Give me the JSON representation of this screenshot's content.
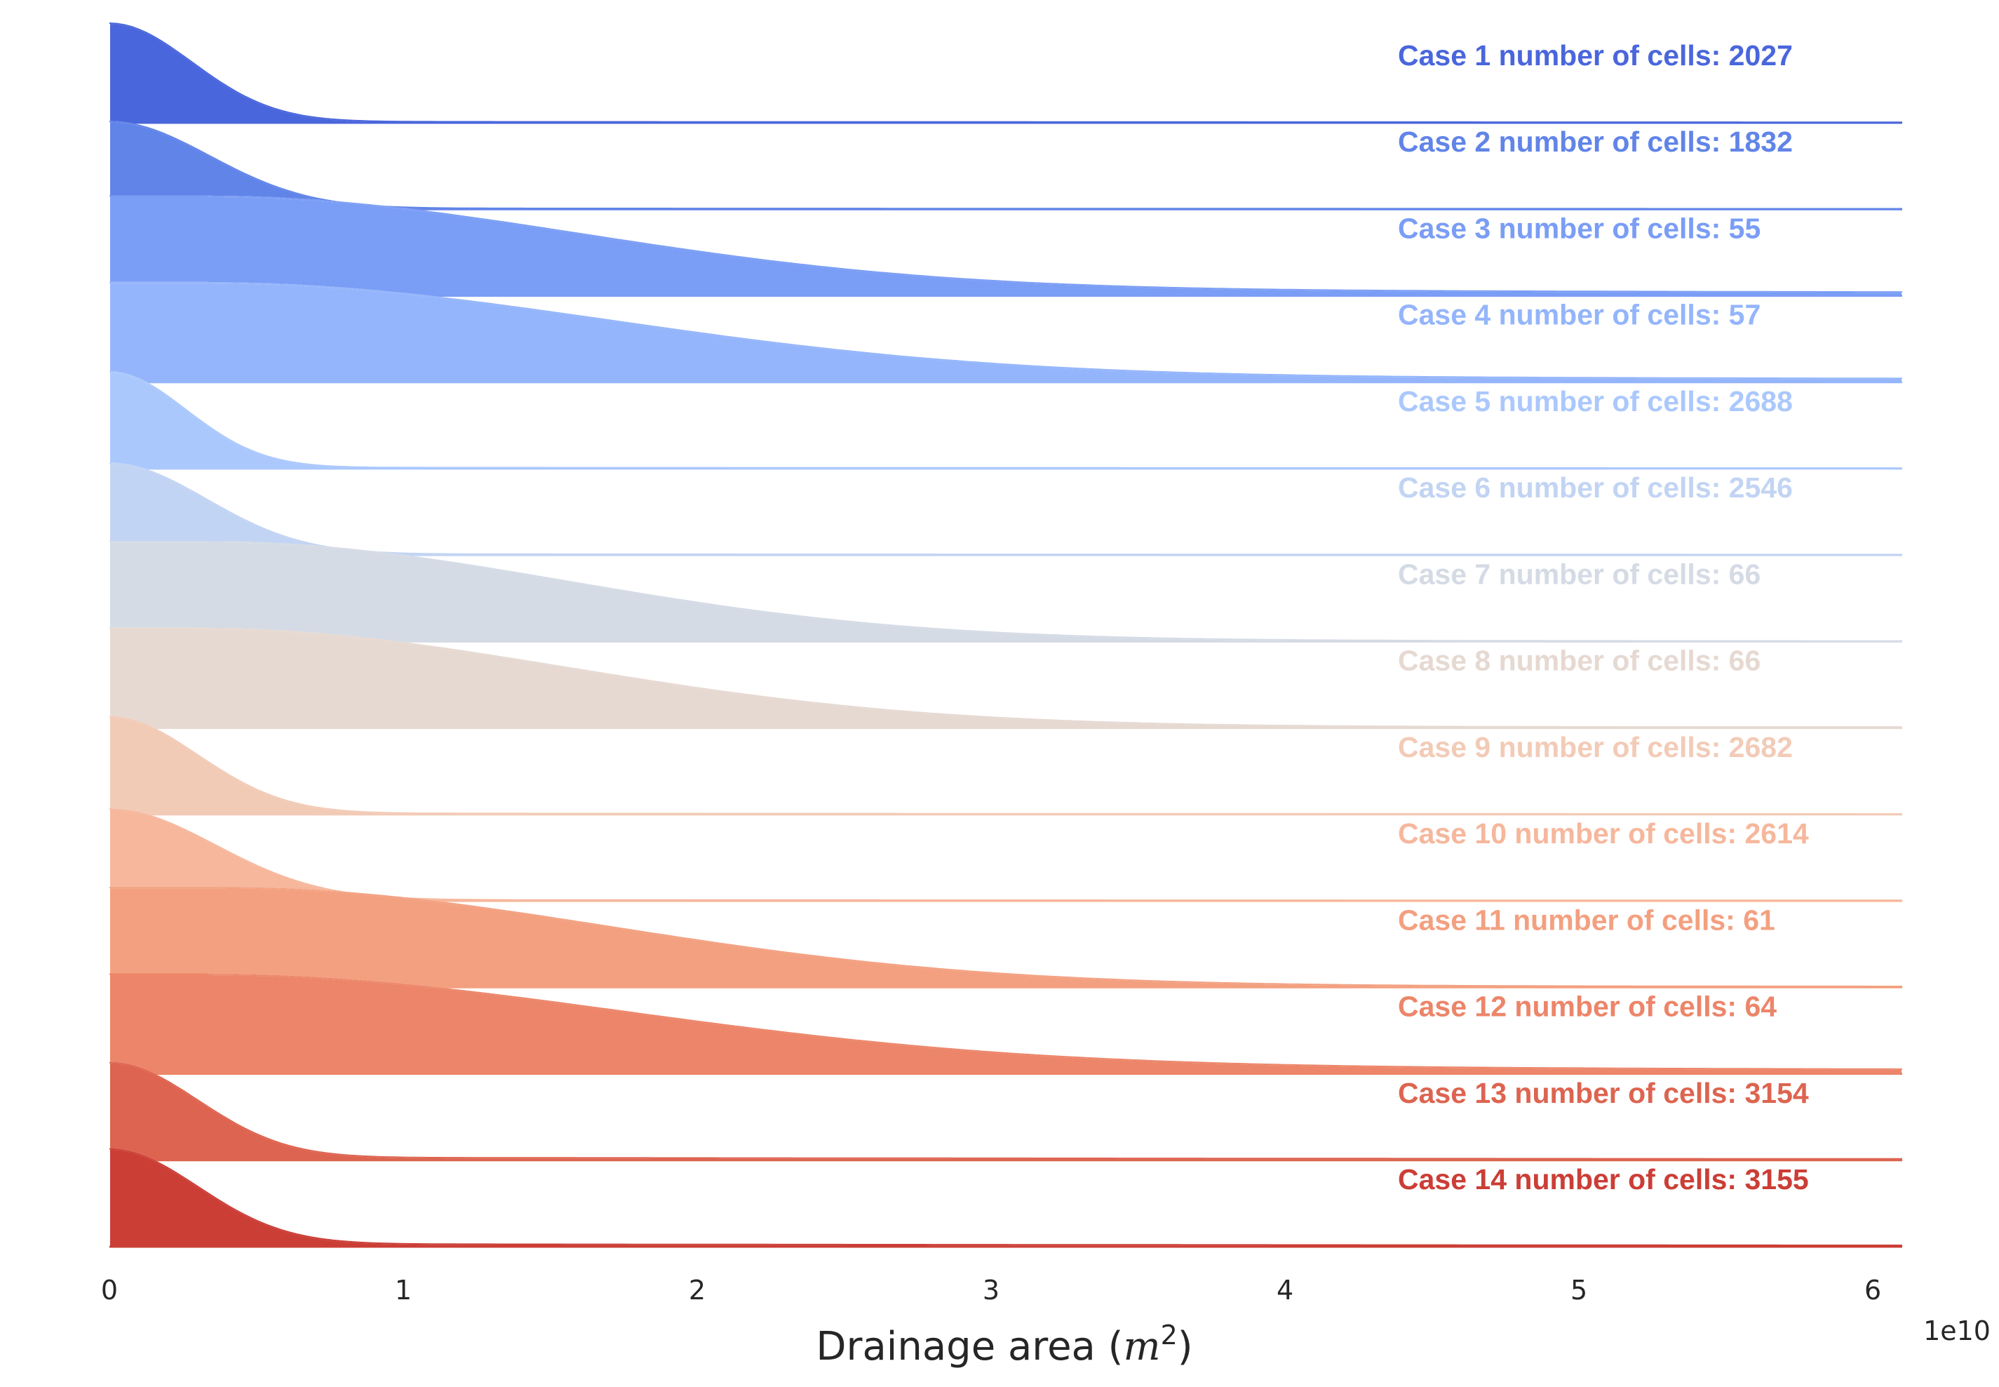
{
  "chart_data": {
    "type": "area",
    "subtype": "ridgeline-kde",
    "xlabel_prefix": "Drainage area (",
    "xlabel_math": "m",
    "xlabel_exponent": "2",
    "xlabel_suffix": ")",
    "x_offset_label": "1e10",
    "xlim": [
      0,
      6.1
    ],
    "x_ticks": [
      0,
      1,
      2,
      3,
      4,
      5,
      6
    ],
    "x_tick_labels": [
      "0",
      "1",
      "2",
      "3",
      "4",
      "5",
      "6"
    ],
    "grid": false,
    "series": [
      {
        "label": "Case 1 number of cells: 2027",
        "color": "#4a66dc",
        "peak": 0.0,
        "width": 0.28,
        "tail": 0.012,
        "height": 1.0
      },
      {
        "label": "Case 2 number of cells: 1832",
        "color": "#6184e8",
        "peak": 0.0,
        "width": 0.34,
        "tail": 0.012,
        "height": 0.88
      },
      {
        "label": "Case 3 number of cells: 55",
        "color": "#7a9df5",
        "peak": 0.35,
        "width": 1.25,
        "tail": 0.08,
        "height": 1.0
      },
      {
        "label": "Case 4 number of cells: 57",
        "color": "#94b5fb",
        "peak": 0.35,
        "width": 1.35,
        "tail": 0.08,
        "height": 1.0
      },
      {
        "label": "Case 5 number of cells: 2688",
        "color": "#abc8fd",
        "peak": 0.0,
        "width": 0.26,
        "tail": 0.012,
        "height": 0.97
      },
      {
        "label": "Case 6 number of cells: 2546",
        "color": "#c2d4f3",
        "peak": 0.0,
        "width": 0.33,
        "tail": 0.012,
        "height": 0.92
      },
      {
        "label": "Case 7 number of cells: 66",
        "color": "#d5dbe5",
        "peak": 0.35,
        "width": 1.2,
        "tail": 0.012,
        "height": 1.0
      },
      {
        "label": "Case 8 number of cells: 66",
        "color": "#e6d9d2",
        "peak": 0.3,
        "width": 1.25,
        "tail": 0.02,
        "height": 1.0
      },
      {
        "label": "Case 9 number of cells: 2682",
        "color": "#f2cbb7",
        "peak": 0.0,
        "width": 0.3,
        "tail": 0.012,
        "height": 0.98
      },
      {
        "label": "Case 10 number of cells: 2614",
        "color": "#f6b79c",
        "peak": 0.0,
        "width": 0.36,
        "tail": 0.012,
        "height": 0.92
      },
      {
        "label": "Case 11 number of cells: 61",
        "color": "#f3a080",
        "peak": 0.4,
        "width": 1.3,
        "tail": 0.02,
        "height": 1.0
      },
      {
        "label": "Case 12 number of cells: 64",
        "color": "#ec8569",
        "peak": 0.35,
        "width": 1.4,
        "tail": 0.1,
        "height": 1.0
      },
      {
        "label": "Case 13 number of cells: 3154",
        "color": "#dd6450",
        "peak": 0.0,
        "width": 0.3,
        "tail": 0.03,
        "height": 0.98
      },
      {
        "label": "Case 14 number of cells: 3155",
        "color": "#cb3e36",
        "peak": 0.0,
        "width": 0.3,
        "tail": 0.03,
        "height": 0.98
      }
    ]
  }
}
